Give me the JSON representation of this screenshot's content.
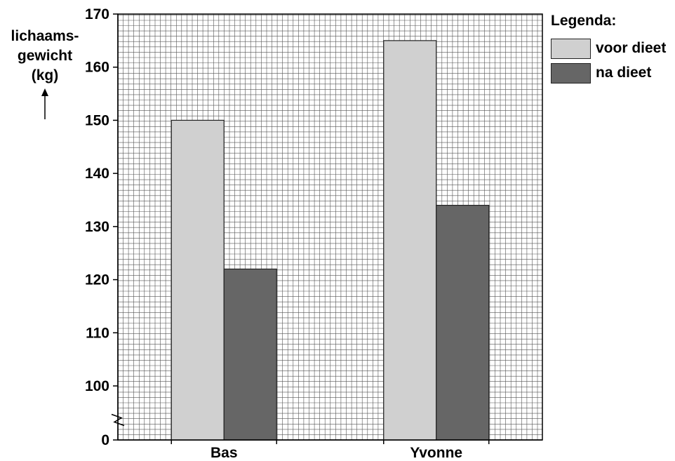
{
  "chart_data": {
    "type": "bar",
    "categories": [
      "Bas",
      "Yvonne"
    ],
    "series": [
      {
        "name": "voor dieet",
        "values": [
          150,
          165
        ],
        "color": "#d0d0d0"
      },
      {
        "name": "na dieet",
        "values": [
          122,
          134
        ],
        "color": "#666666"
      }
    ],
    "ylabel_lines": [
      "lichaams-",
      "gewicht",
      "(kg)"
    ],
    "ylim": [
      100,
      170
    ],
    "yticks": [
      100,
      110,
      120,
      130,
      140,
      150,
      160,
      170
    ],
    "y_origin_label": "0",
    "axis_break": true,
    "grid": true,
    "legend": {
      "title": "Legenda:",
      "placement": "top-right"
    }
  }
}
